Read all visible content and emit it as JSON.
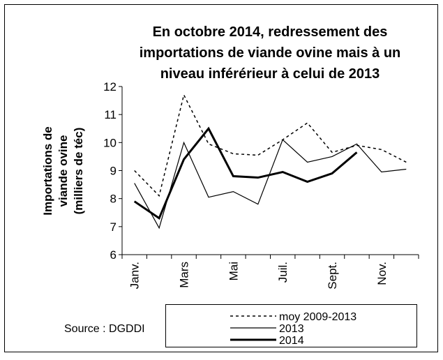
{
  "chart_data": {
    "type": "line",
    "title_lines": [
      "En octobre 2014, redressement des",
      "importations de viande ovine mais à un",
      "niveau inférérieur à celui de 2013"
    ],
    "ylabel_lines": [
      "Importations de",
      "viande ovine",
      "(milliers de téc)"
    ],
    "source": "Source : DGDDI",
    "categories": [
      "Janv.",
      null,
      "Mars",
      null,
      "Mai",
      null,
      "Juil.",
      null,
      "Sept.",
      null,
      "Nov.",
      null
    ],
    "series": [
      {
        "name": "moy 2009-2013",
        "color": "#000000",
        "dash": "4,4",
        "width": 1.5,
        "values": [
          9.0,
          8.1,
          11.7,
          9.95,
          9.6,
          9.55,
          10.1,
          10.7,
          9.65,
          9.9,
          9.75,
          9.3
        ]
      },
      {
        "name": "2013",
        "color": "#000000",
        "width": 1.2,
        "values": [
          8.55,
          6.95,
          10.0,
          8.05,
          8.25,
          7.8,
          10.1,
          9.3,
          9.5,
          9.95,
          8.95,
          9.05
        ]
      },
      {
        "name": "2014",
        "color": "#000000",
        "width": 3,
        "values": [
          7.9,
          7.3,
          9.4,
          10.5,
          8.8,
          8.75,
          8.95,
          8.6,
          8.9,
          9.65,
          null,
          null
        ]
      }
    ],
    "ylim": [
      6,
      12
    ],
    "yticks": [
      6,
      7,
      8,
      9,
      10,
      11,
      12
    ]
  }
}
